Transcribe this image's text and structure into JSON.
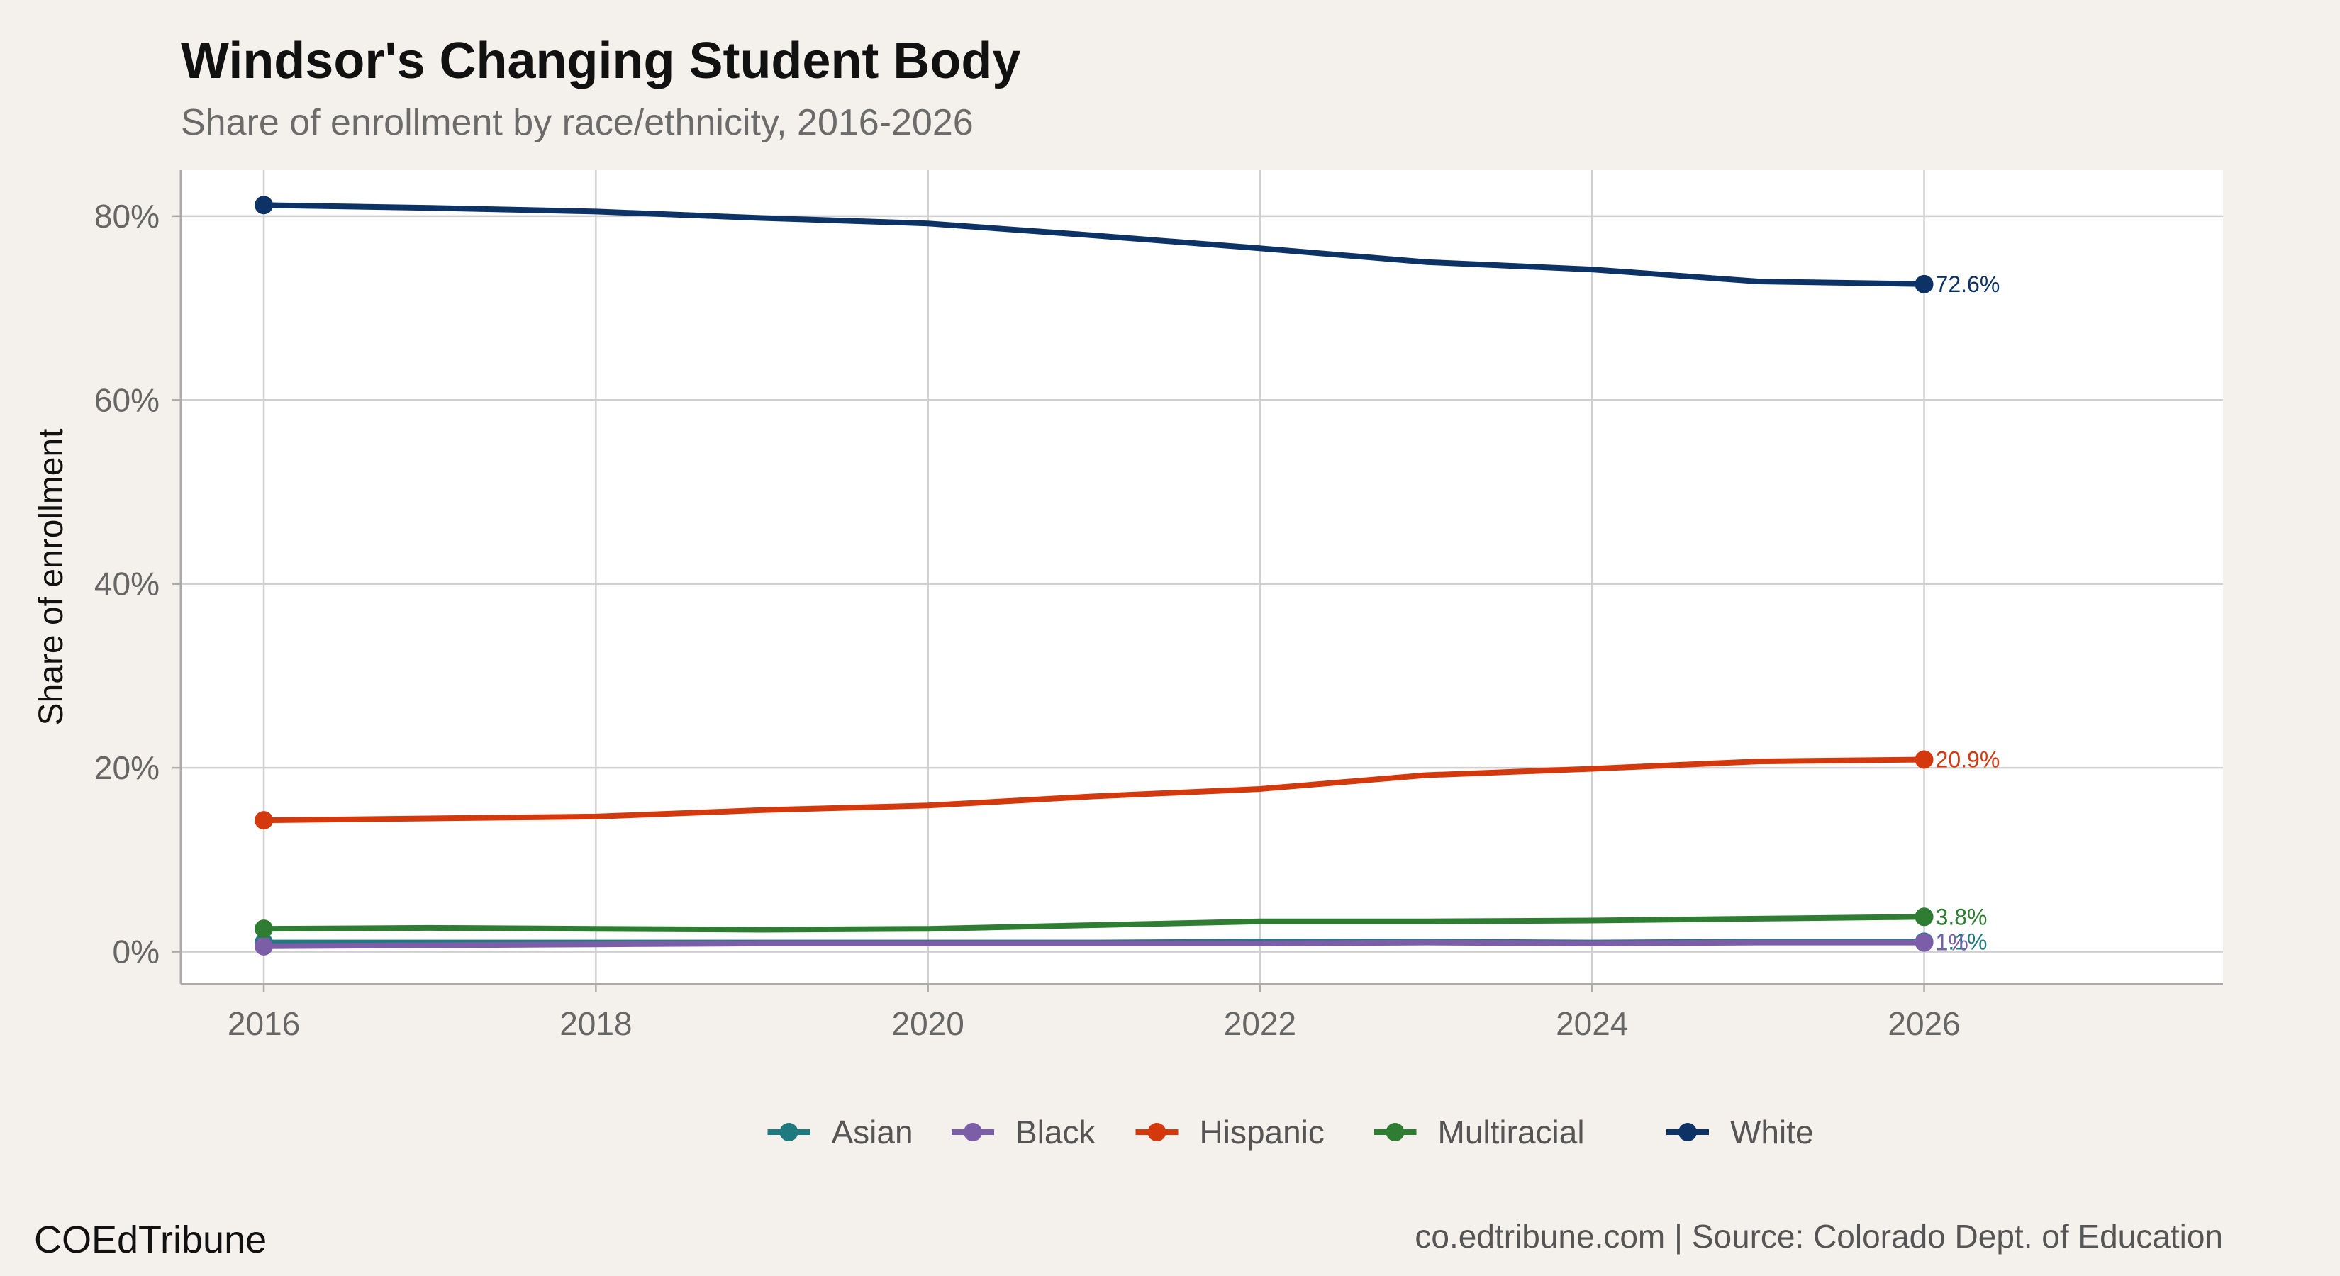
{
  "title": "Windsor's Changing Student Body",
  "subtitle": "Share of enrollment by race/ethnicity, 2016-2026",
  "brand": "COEdTribune",
  "source": "co.edtribune.com | Source: Colorado Dept. of Education",
  "chart_data": {
    "type": "line",
    "title": "Windsor's Changing Student Body",
    "subtitle": "Share of enrollment by race/ethnicity, 2016-2026",
    "xlabel": "",
    "ylabel": "Share of enrollment",
    "x": [
      2016,
      2017,
      2018,
      2019,
      2020,
      2021,
      2022,
      2023,
      2024,
      2025,
      2026
    ],
    "xlim": [
      2015.5,
      2027.8
    ],
    "ylim": [
      -3.5,
      85
    ],
    "x_ticks": [
      2016,
      2018,
      2020,
      2022,
      2024,
      2026
    ],
    "x_tick_labels": [
      "2016",
      "2018",
      "2020",
      "2022",
      "2024",
      "2026"
    ],
    "y_ticks": [
      0,
      20,
      40,
      60,
      80
    ],
    "y_tick_labels": [
      "0%",
      "20%",
      "40%",
      "60%",
      "80%"
    ],
    "grid": true,
    "legend_position": "bottom",
    "series": [
      {
        "name": "Asian",
        "color": "#1f7a80",
        "values": [
          1.0,
          1.0,
          1.0,
          1.0,
          1.0,
          1.0,
          1.1,
          1.1,
          1.0,
          1.1,
          1.1
        ],
        "end_label": "1.1%"
      },
      {
        "name": "Black",
        "color": "#7b5ea7",
        "values": [
          0.6,
          0.7,
          0.8,
          0.9,
          0.9,
          0.9,
          0.9,
          1.0,
          0.9,
          1.0,
          1.0
        ],
        "end_label": "1%"
      },
      {
        "name": "Hispanic",
        "color": "#d4380d",
        "values": [
          14.3,
          14.5,
          14.7,
          15.4,
          15.9,
          16.9,
          17.7,
          19.2,
          19.9,
          20.7,
          20.9
        ],
        "end_label": "20.9%"
      },
      {
        "name": "Multiracial",
        "color": "#2e7d32",
        "values": [
          2.5,
          2.6,
          2.5,
          2.4,
          2.5,
          2.9,
          3.3,
          3.3,
          3.4,
          3.6,
          3.8
        ],
        "end_label": "3.8%"
      },
      {
        "name": "White",
        "color": "#0d3366",
        "values": [
          81.2,
          80.9,
          80.5,
          79.8,
          79.2,
          77.9,
          76.5,
          75.0,
          74.2,
          72.9,
          72.6
        ],
        "end_label": "72.6%"
      }
    ]
  }
}
